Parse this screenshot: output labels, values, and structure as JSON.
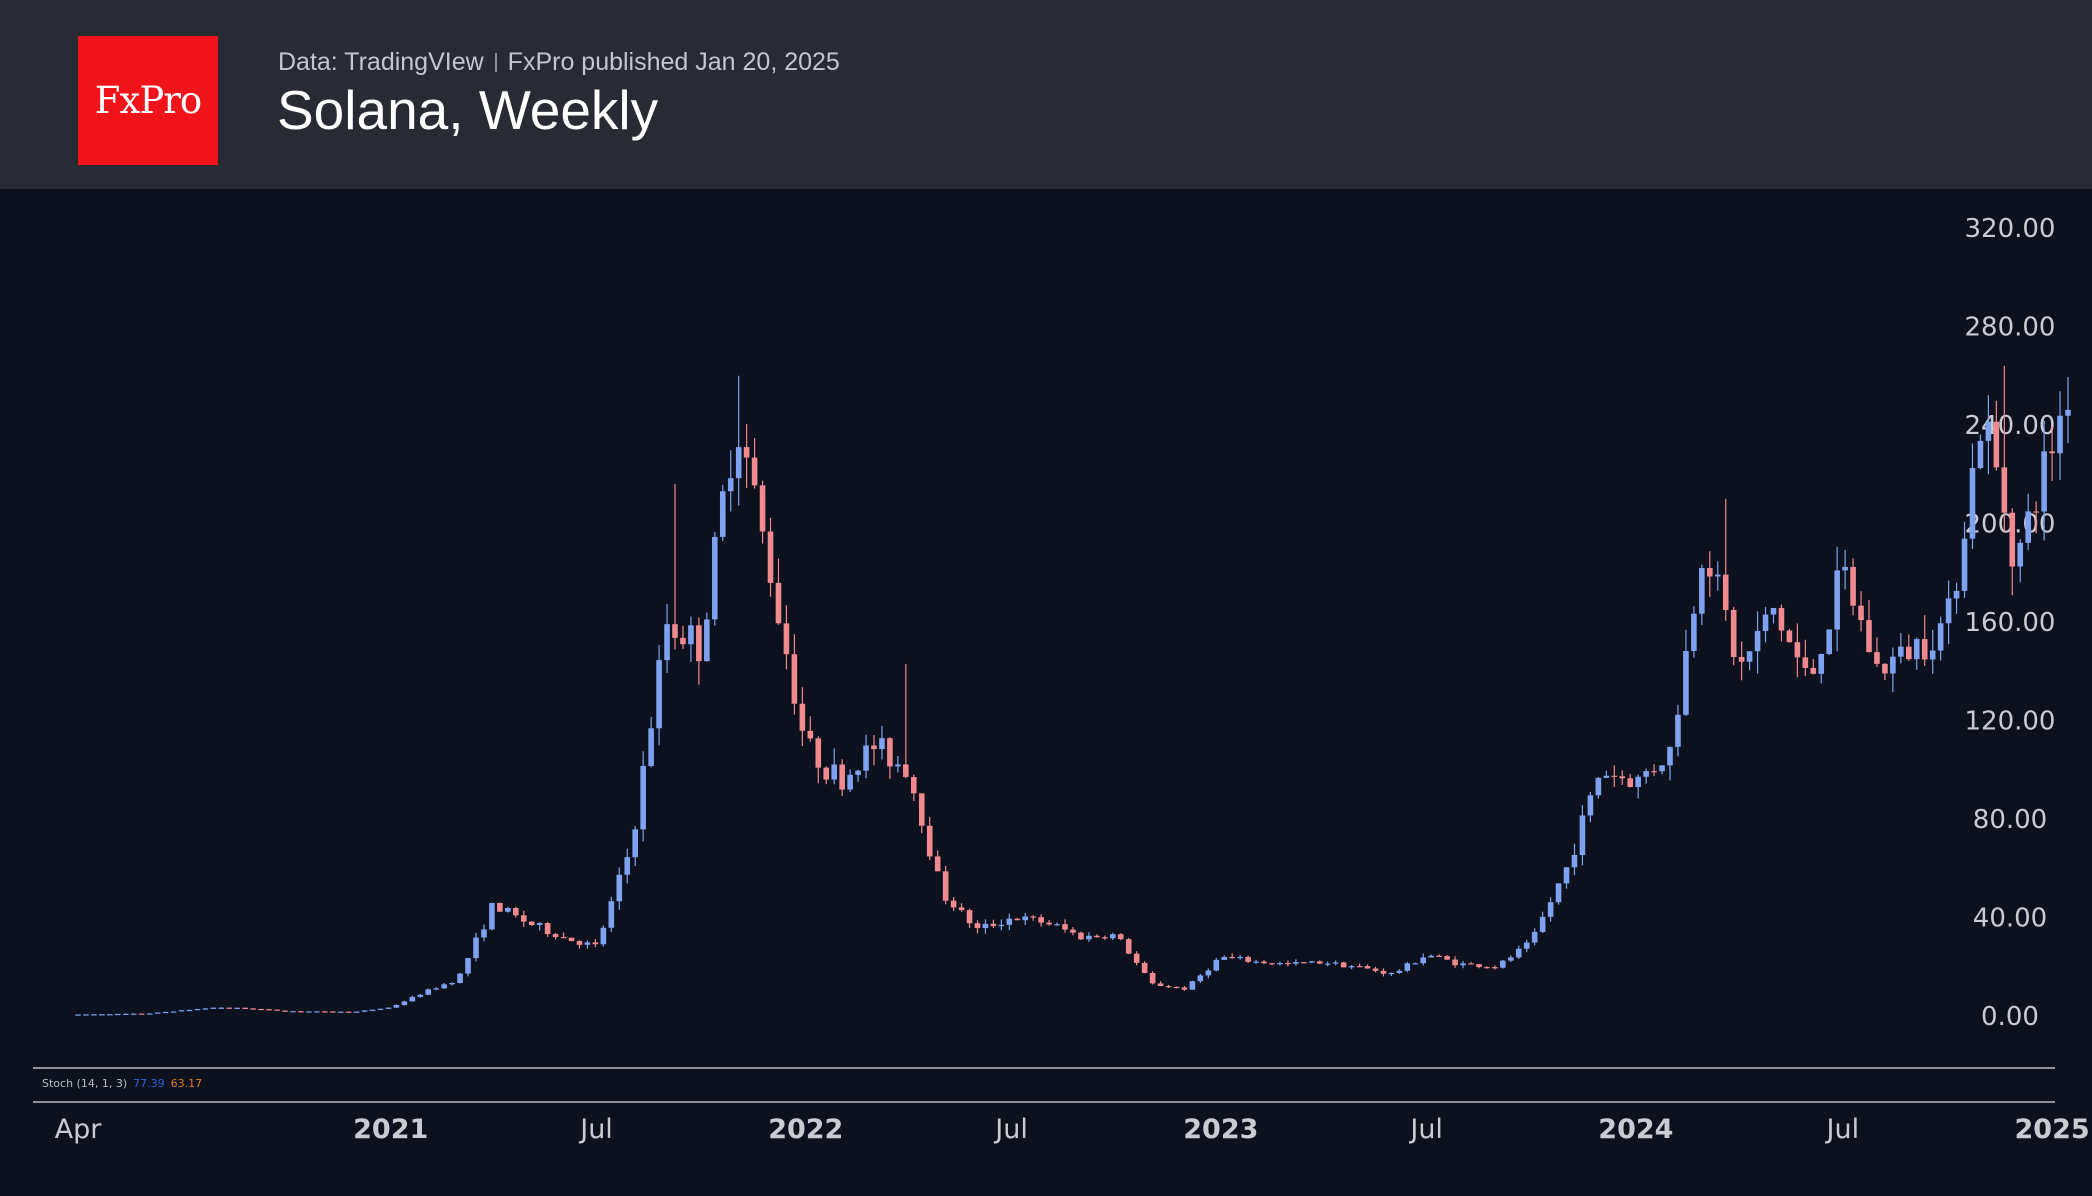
{
  "header": {
    "logo_text": "FxPro",
    "source": "Data: TradingVIew",
    "published": "FxPro published Jan 20, 2025",
    "title": "Solana, Weekly"
  },
  "indicator": {
    "label": "Stoch (14, 1, 3)",
    "k_value": "77.39",
    "d_value": "63.17",
    "k_color": "#2f5fd8",
    "d_color": "#e07a22"
  },
  "colors": {
    "background": "#0c111d",
    "header_bg": "#282a34",
    "logo_bg": "#f0141a",
    "up": "#7ea2f0",
    "down": "#f08a8e",
    "text": "#c8cbd2",
    "divider": "#b9bcc4"
  },
  "chart_data": {
    "type": "candlestick",
    "title": "Solana, Weekly",
    "xlabel": "",
    "ylabel": "",
    "ylim": [
      0,
      320
    ],
    "yticks": [
      "0.00",
      "40.00",
      "80.00",
      "120.00",
      "160.00",
      "200.00",
      "240.00",
      "280.00",
      "320.00"
    ],
    "xticks": [
      {
        "label": "Apr",
        "date": "2020-04",
        "bold": false
      },
      {
        "label": "2021",
        "date": "2021-01",
        "bold": true
      },
      {
        "label": "Jul",
        "date": "2021-07",
        "bold": false
      },
      {
        "label": "2022",
        "date": "2022-01",
        "bold": true
      },
      {
        "label": "Jul",
        "date": "2022-07",
        "bold": false
      },
      {
        "label": "2023",
        "date": "2023-01",
        "bold": true
      },
      {
        "label": "Jul",
        "date": "2023-07",
        "bold": false
      },
      {
        "label": "2024",
        "date": "2024-01",
        "bold": true
      },
      {
        "label": "Jul",
        "date": "2024-07",
        "bold": false
      },
      {
        "label": "2025",
        "date": "2025-01",
        "bold": true
      }
    ],
    "x_start": "2020-04",
    "x_end": "2025-01-20",
    "grid": false,
    "anchors": [
      [
        "2020-04",
        0.6
      ],
      [
        "2020-06",
        1.0
      ],
      [
        "2020-08",
        3.5
      ],
      [
        "2020-09",
        3.0
      ],
      [
        "2020-10",
        2.0
      ],
      [
        "2020-11",
        1.8
      ],
      [
        "2020-12",
        1.7
      ],
      [
        "2021-01",
        3.5
      ],
      [
        "2021-02",
        10
      ],
      [
        "2021-03",
        15
      ],
      [
        "2021-04",
        45
      ],
      [
        "2021-05",
        38
      ],
      [
        "2021-06",
        32
      ],
      [
        "2021-07",
        28
      ],
      [
        "2021-08",
        70
      ],
      [
        "2021-09",
        160
      ],
      [
        "2021-10",
        150
      ],
      [
        "2021-11",
        245
      ],
      [
        "2021-12",
        180
      ],
      [
        "2022-01",
        110
      ],
      [
        "2022-02",
        95
      ],
      [
        "2022-03",
        110
      ],
      [
        "2022-04",
        100
      ],
      [
        "2022-05",
        50
      ],
      [
        "2022-06",
        35
      ],
      [
        "2022-07",
        40
      ],
      [
        "2022-08",
        38
      ],
      [
        "2022-09",
        32
      ],
      [
        "2022-10",
        33
      ],
      [
        "2022-11",
        13
      ],
      [
        "2022-12",
        11
      ],
      [
        "2023-01",
        24
      ],
      [
        "2023-02",
        22
      ],
      [
        "2023-03",
        21
      ],
      [
        "2023-04",
        22
      ],
      [
        "2023-05",
        20
      ],
      [
        "2023-06",
        17
      ],
      [
        "2023-07",
        25
      ],
      [
        "2023-08",
        21
      ],
      [
        "2023-09",
        20
      ],
      [
        "2023-10",
        30
      ],
      [
        "2023-11",
        60
      ],
      [
        "2023-12",
        100
      ],
      [
        "2024-01",
        95
      ],
      [
        "2024-02",
        108
      ],
      [
        "2024-03",
        195
      ],
      [
        "2024-04",
        140
      ],
      [
        "2024-05",
        165
      ],
      [
        "2024-06",
        135
      ],
      [
        "2024-07",
        180
      ],
      [
        "2024-08",
        140
      ],
      [
        "2024-09",
        150
      ],
      [
        "2024-10",
        160
      ],
      [
        "2024-11",
        245
      ],
      [
        "2024-12",
        185
      ],
      [
        "2025-01-20",
        262
      ]
    ],
    "spikes": [
      {
        "date": "2021-09-06",
        "high": 216
      },
      {
        "date": "2021-11-06",
        "high": 260
      },
      {
        "date": "2022-03-28",
        "high": 143
      },
      {
        "date": "2024-03-18",
        "high": 210
      },
      {
        "date": "2024-11-22",
        "high": 264
      },
      {
        "date": "2025-01-19",
        "high": 295
      }
    ]
  }
}
